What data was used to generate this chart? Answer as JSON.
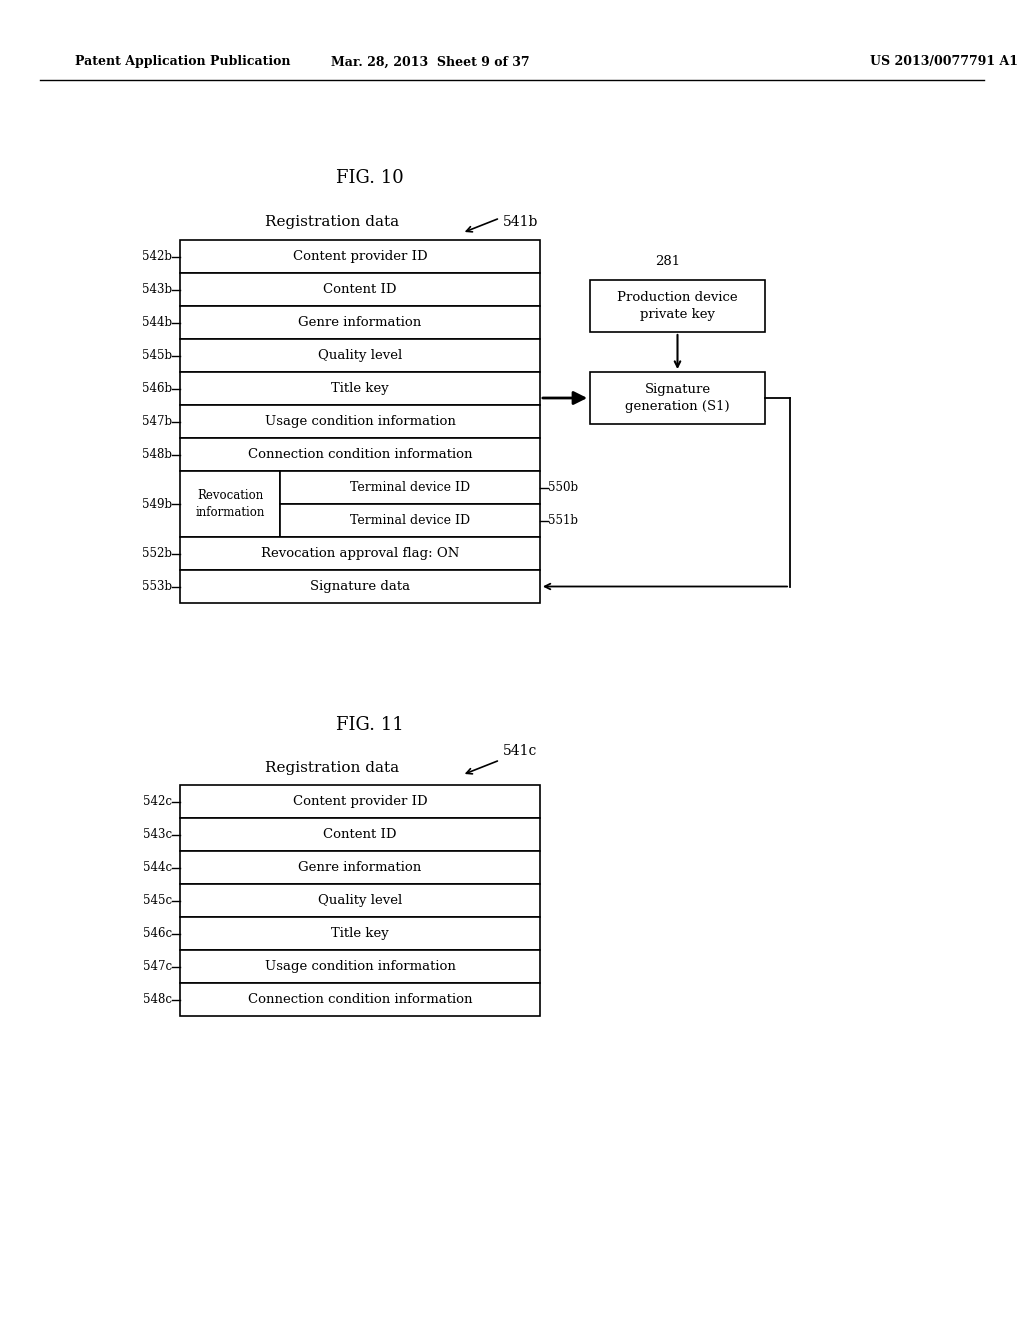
{
  "header_left": "Patent Application Publication",
  "header_mid": "Mar. 28, 2013  Sheet 9 of 37",
  "header_right": "US 2013/0077791 A1",
  "fig10_title": "FIG. 10",
  "fig11_title": "FIG. 11",
  "fig10_label": "541b",
  "fig11_label": "541c",
  "fig10_reg_label": "Registration data",
  "fig11_reg_label": "Registration data",
  "fig10_rows": [
    {
      "label": "542b",
      "text": "Content provider ID"
    },
    {
      "label": "543b",
      "text": "Content ID"
    },
    {
      "label": "544b",
      "text": "Genre information"
    },
    {
      "label": "545b",
      "text": "Quality level"
    },
    {
      "label": "546b",
      "text": "Title key"
    },
    {
      "label": "547b",
      "text": "Usage condition information"
    },
    {
      "label": "548b",
      "text": "Connection condition information"
    }
  ],
  "fig10_revocation_label": "549b",
  "fig10_terminal_rows": [
    {
      "label": "550b",
      "text": "Terminal device ID"
    },
    {
      "label": "551b",
      "text": "Terminal device ID"
    }
  ],
  "fig10_extra_rows": [
    {
      "label": "552b",
      "text": "Revocation approval flag: ON"
    },
    {
      "label": "553b",
      "text": "Signature data"
    }
  ],
  "fig10_box281_text": "281",
  "fig10_box281_body": "Production device\nprivate key",
  "fig10_sig_text": "Signature\ngeneration (S1)",
  "fig11_rows": [
    {
      "label": "542c",
      "text": "Content provider ID"
    },
    {
      "label": "543c",
      "text": "Content ID"
    },
    {
      "label": "544c",
      "text": "Genre information"
    },
    {
      "label": "545c",
      "text": "Quality level"
    },
    {
      "label": "546c",
      "text": "Title key"
    },
    {
      "label": "547c",
      "text": "Usage condition information"
    },
    {
      "label": "548c",
      "text": "Connection condition information"
    }
  ],
  "bg_color": "#ffffff",
  "text_color": "#000000"
}
